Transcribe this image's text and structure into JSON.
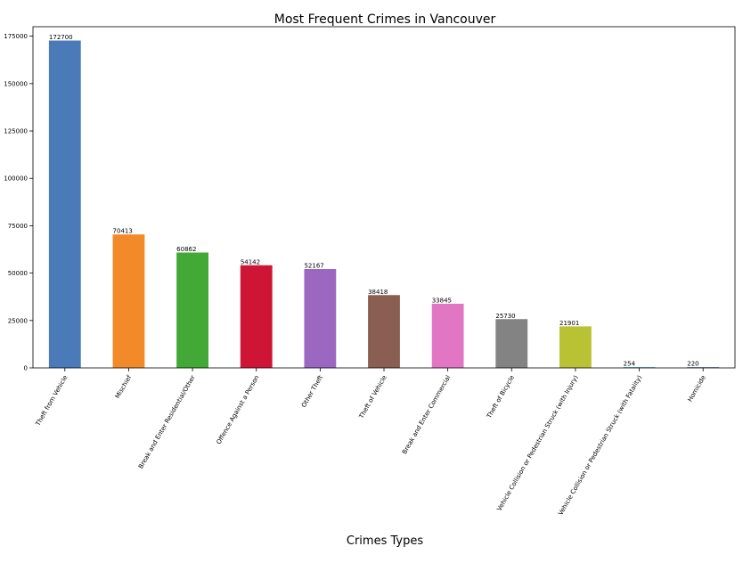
{
  "chart_data": {
    "type": "bar",
    "title": "Most Frequent Crimes in Vancouver",
    "xlabel": "Crimes Types",
    "ylabel": "",
    "ylim": [
      0,
      180000
    ],
    "yticks": [
      0,
      25000,
      50000,
      75000,
      100000,
      125000,
      150000,
      175000
    ],
    "ytick_labels": [
      "0",
      "25000",
      "50000",
      "75000",
      "100000",
      "125000",
      "150000",
      "175000"
    ],
    "categories": [
      "Theft from Vehicle",
      "Mischief",
      "Break and Enter Residential/Other",
      "Offence Against a Person",
      "Other Theft",
      "Theft of Vehicle",
      "Break and Enter Commercial",
      "Theft of Bicycle",
      "Vehicle Collision or Pedestrian Struck (with Injury)",
      "Vehicle Collision or Pedestrian Struck (with Fatality)",
      "Homicide"
    ],
    "values": [
      172700,
      70413,
      60862,
      54142,
      52167,
      38418,
      33845,
      25730,
      21901,
      254,
      220
    ],
    "data_labels": [
      "172700",
      "70413",
      "60862",
      "54142",
      "52167",
      "38418",
      "33845",
      "25730",
      "21901",
      "254",
      "220"
    ],
    "colors": [
      "#4a7ab7",
      "#f28a2a",
      "#42a936",
      "#cf1535",
      "#9b67c0",
      "#8b5e54",
      "#e177c4",
      "#838383",
      "#b9c232",
      "#1fb8c9",
      "#4a7ab7"
    ],
    "grid": false,
    "legend": "none"
  }
}
